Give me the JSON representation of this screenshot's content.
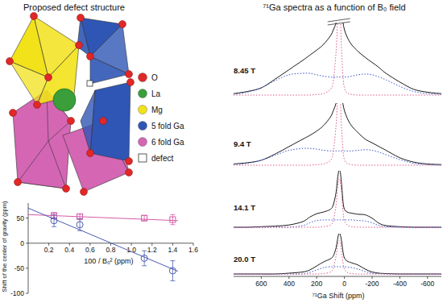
{
  "structure": {
    "title": "Proposed defect structure",
    "legend": [
      {
        "label": "O",
        "color": "#e02828",
        "marker": "circle"
      },
      {
        "label": "La",
        "color": "#3a9e3a",
        "marker": "circle"
      },
      {
        "label": "Mg",
        "color": "#f2e21a",
        "marker": "circle"
      },
      {
        "label": "5 fold Ga",
        "color": "#2f56b5",
        "marker": "circle"
      },
      {
        "label": "6 fold Ga",
        "color": "#d466b4",
        "marker": "circle"
      },
      {
        "label": "defect",
        "color": "#ffffff",
        "marker": "square"
      }
    ]
  },
  "chart_data": [
    {
      "type": "scatter",
      "x_label": "100 / B₀² (ppm)",
      "y_label": "Shift of the center of gravity (ppm)",
      "xlim": [
        0,
        1.6
      ],
      "xticks": [
        0.2,
        0.4,
        0.6,
        0.8,
        {
          "value": 1,
          "label": "1.0"
        },
        1.2,
        1.4,
        1.6
      ],
      "ylim": [
        -100,
        80
      ],
      "yticks": [
        -100,
        -50,
        0,
        50
      ],
      "grid": false,
      "series": [
        {
          "color": "#d65aa8",
          "marker": "square",
          "x": [
            0.25,
            0.5,
            1.125,
            1.4
          ],
          "values": [
            55,
            53,
            50,
            47
          ],
          "errors": [
            6,
            5,
            5,
            10
          ]
        },
        {
          "type": "line",
          "color": "#d65aa8",
          "line_style": "solid",
          "x": [
            0,
            1.45
          ],
          "values": [
            57,
            45
          ]
        },
        {
          "color": "#4a5bb0",
          "marker": "circle",
          "x": [
            0.25,
            0.5,
            1.125,
            1.4
          ],
          "values": [
            45,
            37,
            -30,
            -55
          ],
          "errors": [
            12,
            12,
            15,
            20
          ]
        },
        {
          "type": "line",
          "color": "#4a5bb0",
          "line_style": "solid",
          "x": [
            0,
            1.45
          ],
          "values": [
            70,
            -56
          ]
        }
      ]
    },
    {
      "type": "line",
      "title": "⁷¹Ga spectra as a function of B₀ field",
      "x_label": "⁷¹Ga Shift (ppm)",
      "xlim": [
        800,
        -700
      ],
      "xticks": [
        600,
        400,
        200,
        0,
        -200,
        -400,
        -600
      ],
      "ylim": [
        0,
        100
      ],
      "tick_labels": "x",
      "x": [
        800,
        700,
        600,
        500,
        400,
        300,
        250,
        200,
        150,
        100,
        80,
        60,
        50,
        40,
        30,
        20,
        10,
        0,
        -20,
        -50,
        -100,
        -150,
        -200,
        -250,
        -300,
        -400,
        -500,
        -600,
        -700
      ],
      "panels": [
        {
          "label": "8.45 T",
          "series": [
            {
              "color": "#000000",
              "line_style": "solid",
              "values": [
                2,
                5,
                10,
                22,
                35,
                48,
                55,
                62,
                70,
                82,
                90,
                100,
                115,
                120,
                118,
                110,
                100,
                90,
                80,
                70,
                60,
                52,
                45,
                38,
                30,
                18,
                8,
                4,
                2
              ]
            },
            {
              "color": "#3b56c9",
              "line_style": "dotted",
              "values": [
                1,
                4,
                10,
                20,
                28,
                30,
                30,
                28,
                26,
                25,
                25,
                25,
                25,
                25,
                25,
                25,
                25,
                25,
                25,
                26,
                28,
                29,
                28,
                25,
                21,
                12,
                5,
                2,
                1
              ]
            },
            {
              "color": "#e05a8c",
              "line_style": "dotted",
              "values": [
                0,
                0,
                0,
                0,
                0,
                0,
                0,
                1,
                2,
                8,
                20,
                60,
                100,
                130,
                110,
                60,
                25,
                10,
                3,
                1,
                0,
                0,
                0,
                0,
                0,
                0,
                0,
                0,
                0
              ]
            }
          ]
        },
        {
          "label": "9.4 T",
          "series": [
            {
              "color": "#000000",
              "line_style": "solid",
              "values": [
                2,
                4,
                8,
                18,
                30,
                42,
                48,
                55,
                64,
                78,
                88,
                100,
                115,
                120,
                118,
                110,
                98,
                88,
                76,
                64,
                52,
                42,
                36,
                30,
                24,
                12,
                5,
                2,
                1
              ]
            },
            {
              "color": "#3b56c9",
              "line_style": "dotted",
              "values": [
                1,
                3,
                8,
                16,
                24,
                27,
                27,
                26,
                24,
                23,
                23,
                23,
                23,
                23,
                23,
                23,
                23,
                23,
                23,
                23,
                24,
                25,
                24,
                21,
                17,
                9,
                3,
                1,
                0
              ]
            },
            {
              "color": "#e05a8c",
              "line_style": "dotted",
              "values": [
                0,
                0,
                0,
                0,
                0,
                0,
                0,
                1,
                2,
                8,
                22,
                65,
                105,
                130,
                108,
                58,
                24,
                9,
                3,
                1,
                0,
                0,
                0,
                0,
                0,
                0,
                0,
                0,
                0
              ]
            }
          ]
        },
        {
          "label": "14.1 T",
          "series": [
            {
              "color": "#000000",
              "line_style": "solid",
              "values": [
                0,
                0,
                1,
                2,
                4,
                10,
                18,
                24,
                27,
                32,
                40,
                62,
                85,
                100,
                98,
                75,
                45,
                32,
                27,
                25,
                23,
                22,
                16,
                7,
                3,
                1,
                0,
                0,
                0
              ]
            },
            {
              "color": "#3b56c9",
              "line_style": "dotted",
              "values": [
                0,
                0,
                0,
                0,
                0,
                3,
                8,
                12,
                13,
                13,
                13,
                13,
                13,
                13,
                13,
                13,
                13,
                13,
                13,
                13,
                12,
                11,
                8,
                3,
                1,
                0,
                0,
                0,
                0
              ]
            },
            {
              "color": "#e05a8c",
              "line_style": "dotted",
              "values": [
                0,
                0,
                0,
                0,
                0,
                0,
                0,
                0,
                1,
                4,
                12,
                40,
                68,
                85,
                82,
                58,
                28,
                12,
                4,
                1,
                0,
                0,
                0,
                0,
                0,
                0,
                0,
                0,
                0
              ]
            }
          ]
        },
        {
          "label": "20.0 T",
          "series": [
            {
              "color": "#000000",
              "line_style": "solid",
              "values": [
                0,
                0,
                0,
                0,
                2,
                5,
                10,
                20,
                30,
                38,
                45,
                65,
                85,
                100,
                98,
                80,
                55,
                40,
                32,
                28,
                22,
                12,
                5,
                2,
                1,
                0,
                0,
                0,
                0
              ]
            },
            {
              "color": "#3b56c9",
              "line_style": "dotted",
              "values": [
                0,
                0,
                0,
                0,
                0,
                0,
                4,
                10,
                16,
                18,
                18,
                18,
                18,
                18,
                18,
                18,
                18,
                18,
                17,
                16,
                12,
                6,
                2,
                1,
                0,
                0,
                0,
                0,
                0
              ]
            },
            {
              "color": "#e05a8c",
              "line_style": "dotted",
              "values": [
                0,
                0,
                0,
                0,
                0,
                0,
                0,
                0,
                1,
                5,
                15,
                45,
                70,
                82,
                78,
                55,
                28,
                12,
                4,
                1,
                0,
                0,
                0,
                0,
                0,
                0,
                0,
                0,
                0
              ]
            }
          ]
        }
      ]
    }
  ]
}
